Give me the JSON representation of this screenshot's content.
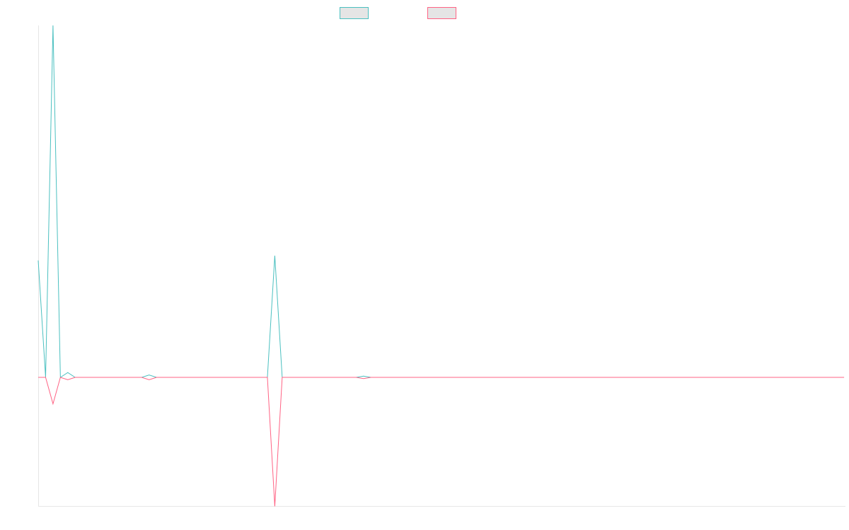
{
  "chart_data": {
    "type": "line",
    "title": "",
    "xlabel": "",
    "ylabel": "",
    "grid": false,
    "legend_position": "top-center",
    "point_count": 110,
    "ylim": [
      -100,
      100
    ],
    "series": [
      {
        "color": "#4bc0c0",
        "legend_fill": "#e5e5e5",
        "values": {
          "default": 0,
          "points": [
            [
              0,
              48.5
            ],
            [
              1,
              0
            ],
            [
              2,
              146
            ],
            [
              3,
              0
            ],
            [
              4,
              2
            ],
            [
              5,
              0
            ],
            [
              14,
              0
            ],
            [
              15,
              1
            ],
            [
              16,
              0
            ],
            [
              31,
              0
            ],
            [
              32,
              50.5
            ],
            [
              33,
              0
            ],
            [
              43,
              0
            ],
            [
              44,
              0.5
            ],
            [
              45,
              0
            ]
          ]
        }
      },
      {
        "color": "#ff6384",
        "legend_fill": "#e5e5e5",
        "values": {
          "default": 0,
          "points": [
            [
              0,
              0
            ],
            [
              1,
              0
            ],
            [
              2,
              -11
            ],
            [
              3,
              0
            ],
            [
              4,
              -1
            ],
            [
              5,
              0
            ],
            [
              14,
              0
            ],
            [
              15,
              -1
            ],
            [
              16,
              0
            ],
            [
              31,
              0
            ],
            [
              32,
              -53.5
            ],
            [
              33,
              0
            ],
            [
              43,
              0
            ],
            [
              44,
              -0.5
            ],
            [
              45,
              0
            ]
          ]
        }
      }
    ]
  }
}
